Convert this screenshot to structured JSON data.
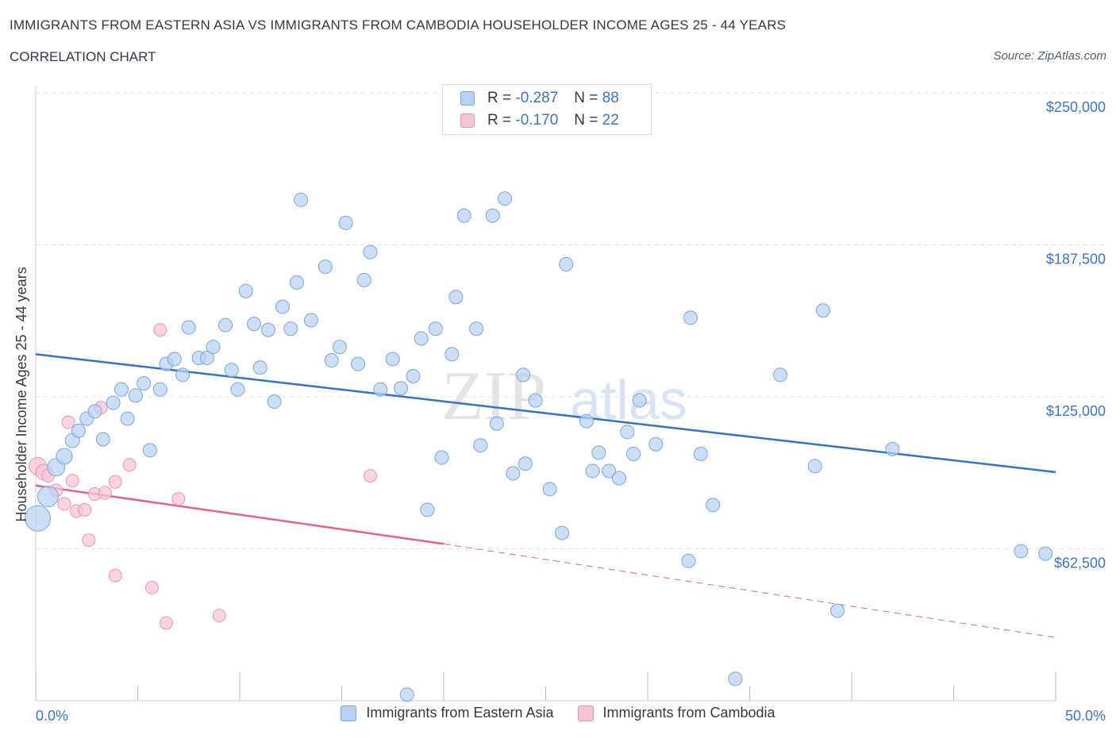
{
  "header": {
    "title": "IMMIGRANTS FROM EASTERN ASIA VS IMMIGRANTS FROM CAMBODIA HOUSEHOLDER INCOME AGES 25 - 44 YEARS",
    "subtitle": "CORRELATION CHART",
    "source": "Source: ZipAtlas.com"
  },
  "watermark": {
    "zip": "ZIP",
    "atlas": "atlas"
  },
  "legend_top": [
    {
      "r_label": "R =",
      "r_value": "-0.287",
      "n_label": "N =",
      "n_value": "88"
    },
    {
      "r_label": "R =",
      "r_value": "-0.170",
      "n_label": "N =",
      "n_value": "22"
    }
  ],
  "colors": {
    "blue_fill": "#b8d1f3",
    "blue_stroke": "#7aa5dd",
    "blue_line": "#3572c6",
    "pink_fill": "#f8c5d5",
    "pink_stroke": "#e896b0",
    "pink_line": "#e0638e",
    "axis_label": "#3d74c6",
    "grid": "#e2e2e2"
  },
  "chart_data": {
    "type": "scatter",
    "title": "IMMIGRANTS FROM EASTERN ASIA VS IMMIGRANTS FROM CAMBODIA HOUSEHOLDER INCOME AGES 25 - 44 YEARS",
    "xlabel": "",
    "ylabel": "Householder Income Ages 25 - 44 years",
    "xlim": [
      0,
      50
    ],
    "ylim": [
      0,
      250000
    ],
    "x_tick_labels": [
      "0.0%",
      "50.0%"
    ],
    "y_ticks": [
      62500,
      125000,
      187500,
      250000
    ],
    "y_tick_labels": [
      "$62,500",
      "$125,000",
      "$187,500",
      "$250,000"
    ],
    "grid": true,
    "legend": "bottom",
    "series": [
      {
        "name": "Immigrants from Eastern Asia",
        "r": -0.287,
        "n": 88,
        "trend": {
          "x": [
            0,
            50
          ],
          "y": [
            142500,
            94000
          ]
        },
        "points": [
          {
            "x": 0.1,
            "y": 75000,
            "s": 16
          },
          {
            "x": 0.6,
            "y": 84000,
            "s": 13
          },
          {
            "x": 1.0,
            "y": 96000,
            "s": 11
          },
          {
            "x": 1.4,
            "y": 100500,
            "s": 10
          },
          {
            "x": 1.8,
            "y": 107000,
            "s": 9
          },
          {
            "x": 2.1,
            "y": 111000
          },
          {
            "x": 2.5,
            "y": 116000
          },
          {
            "x": 2.9,
            "y": 119000
          },
          {
            "x": 3.3,
            "y": 107500
          },
          {
            "x": 3.8,
            "y": 122500
          },
          {
            "x": 4.2,
            "y": 128000
          },
          {
            "x": 4.5,
            "y": 116000
          },
          {
            "x": 4.9,
            "y": 125500
          },
          {
            "x": 5.3,
            "y": 130500
          },
          {
            "x": 5.6,
            "y": 103000
          },
          {
            "x": 6.1,
            "y": 128000
          },
          {
            "x": 6.4,
            "y": 138500
          },
          {
            "x": 6.8,
            "y": 140500
          },
          {
            "x": 7.2,
            "y": 134000
          },
          {
            "x": 7.5,
            "y": 153500
          },
          {
            "x": 8.0,
            "y": 141000
          },
          {
            "x": 8.4,
            "y": 141000
          },
          {
            "x": 8.7,
            "y": 145500
          },
          {
            "x": 9.3,
            "y": 154500
          },
          {
            "x": 9.6,
            "y": 136000
          },
          {
            "x": 9.9,
            "y": 128000
          },
          {
            "x": 10.3,
            "y": 168500
          },
          {
            "x": 10.7,
            "y": 155000
          },
          {
            "x": 11.0,
            "y": 137000
          },
          {
            "x": 11.4,
            "y": 152500
          },
          {
            "x": 11.7,
            "y": 123000
          },
          {
            "x": 12.1,
            "y": 162000
          },
          {
            "x": 12.5,
            "y": 153000
          },
          {
            "x": 12.8,
            "y": 172000
          },
          {
            "x": 13.0,
            "y": 206000
          },
          {
            "x": 13.5,
            "y": 156500
          },
          {
            "x": 14.2,
            "y": 178500
          },
          {
            "x": 14.5,
            "y": 140000
          },
          {
            "x": 14.9,
            "y": 145500
          },
          {
            "x": 15.2,
            "y": 196500
          },
          {
            "x": 15.8,
            "y": 138500
          },
          {
            "x": 16.1,
            "y": 173000
          },
          {
            "x": 16.4,
            "y": 184500
          },
          {
            "x": 16.9,
            "y": 128000
          },
          {
            "x": 17.5,
            "y": 140500
          },
          {
            "x": 17.9,
            "y": 128500
          },
          {
            "x": 18.5,
            "y": 133500
          },
          {
            "x": 18.9,
            "y": 149000
          },
          {
            "x": 19.2,
            "y": 78500
          },
          {
            "x": 19.6,
            "y": 153000
          },
          {
            "x": 19.9,
            "y": 100000
          },
          {
            "x": 20.4,
            "y": 142500
          },
          {
            "x": 20.6,
            "y": 166000
          },
          {
            "x": 21.0,
            "y": 199500
          },
          {
            "x": 21.6,
            "y": 153000
          },
          {
            "x": 22.4,
            "y": 199500
          },
          {
            "x": 22.6,
            "y": 114000
          },
          {
            "x": 23.0,
            "y": 206500
          },
          {
            "x": 23.4,
            "y": 93500
          },
          {
            "x": 23.9,
            "y": 134000
          },
          {
            "x": 24.0,
            "y": 97500
          },
          {
            "x": 24.5,
            "y": 123500
          },
          {
            "x": 25.2,
            "y": 87000
          },
          {
            "x": 25.8,
            "y": 69000
          },
          {
            "x": 26.0,
            "y": 179500
          },
          {
            "x": 27.0,
            "y": 115000
          },
          {
            "x": 27.3,
            "y": 94500
          },
          {
            "x": 27.6,
            "y": 102000
          },
          {
            "x": 28.1,
            "y": 94500
          },
          {
            "x": 28.6,
            "y": 91500
          },
          {
            "x": 29.0,
            "y": 110500
          },
          {
            "x": 29.3,
            "y": 101500
          },
          {
            "x": 29.6,
            "y": 123500
          },
          {
            "x": 30.4,
            "y": 105500
          },
          {
            "x": 32.0,
            "y": 57500
          },
          {
            "x": 32.1,
            "y": 157500
          },
          {
            "x": 32.6,
            "y": 101500
          },
          {
            "x": 33.2,
            "y": 80500
          },
          {
            "x": 34.3,
            "y": 9000
          },
          {
            "x": 36.5,
            "y": 134000
          },
          {
            "x": 38.2,
            "y": 96500
          },
          {
            "x": 38.6,
            "y": 160500
          },
          {
            "x": 39.3,
            "y": 37000
          },
          {
            "x": 42.0,
            "y": 103500
          },
          {
            "x": 48.3,
            "y": 61500
          },
          {
            "x": 49.5,
            "y": 60500
          },
          {
            "x": 18.2,
            "y": 2500
          },
          {
            "x": 21.8,
            "y": 105000
          }
        ]
      },
      {
        "name": "Immigrants from Cambodia",
        "r": -0.17,
        "n": 22,
        "trend": {
          "x": [
            0,
            20
          ],
          "y": [
            88500,
            64500
          ]
        },
        "trend_dashed": {
          "x": [
            20,
            50
          ],
          "y": [
            64500,
            26000
          ]
        },
        "points": [
          {
            "x": 0.1,
            "y": 96500,
            "s": 11
          },
          {
            "x": 0.4,
            "y": 94000,
            "s": 10
          },
          {
            "x": 0.6,
            "y": 92500
          },
          {
            "x": 1.0,
            "y": 86500
          },
          {
            "x": 1.4,
            "y": 81000
          },
          {
            "x": 1.6,
            "y": 114500
          },
          {
            "x": 1.8,
            "y": 90500
          },
          {
            "x": 2.0,
            "y": 78000
          },
          {
            "x": 2.4,
            "y": 78500
          },
          {
            "x": 2.6,
            "y": 66000
          },
          {
            "x": 2.9,
            "y": 85000
          },
          {
            "x": 3.2,
            "y": 120500
          },
          {
            "x": 3.4,
            "y": 85500
          },
          {
            "x": 3.9,
            "y": 90000
          },
          {
            "x": 3.9,
            "y": 51500
          },
          {
            "x": 4.6,
            "y": 97000
          },
          {
            "x": 5.7,
            "y": 46500
          },
          {
            "x": 6.1,
            "y": 152500
          },
          {
            "x": 6.4,
            "y": 32000
          },
          {
            "x": 7.0,
            "y": 83000
          },
          {
            "x": 9.0,
            "y": 35000
          },
          {
            "x": 16.4,
            "y": 92500
          }
        ]
      }
    ]
  }
}
